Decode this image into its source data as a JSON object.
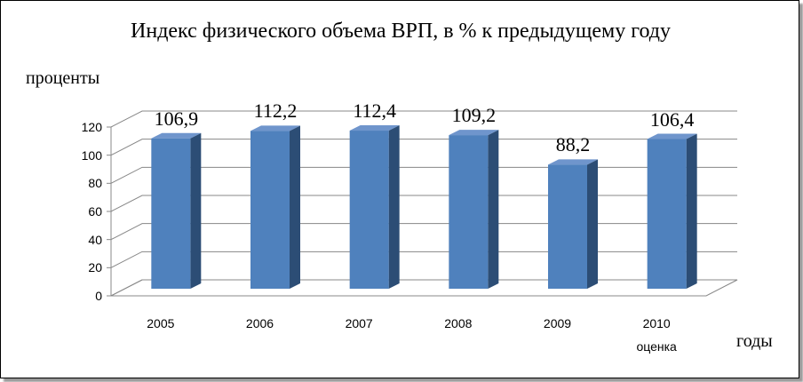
{
  "chart_data": {
    "type": "bar3d",
    "title": "Индекс физического объема ВРП, в % к предыдущему году",
    "y_label": "проценты",
    "x_label": "годы",
    "categories": [
      "2005",
      "2006",
      "2007",
      "2008",
      "2009",
      "2010\nоценка"
    ],
    "values": [
      106.9,
      112.2,
      112.4,
      109.2,
      88.2,
      106.4
    ],
    "value_labels": [
      "106,9",
      "112,2",
      "112,4",
      "109,2",
      "88,2",
      "106,4"
    ],
    "color": "#4f81bd",
    "ylim": [
      0,
      120
    ],
    "yticks": [
      0,
      20,
      40,
      60,
      80,
      100,
      120
    ],
    "grid": true
  }
}
